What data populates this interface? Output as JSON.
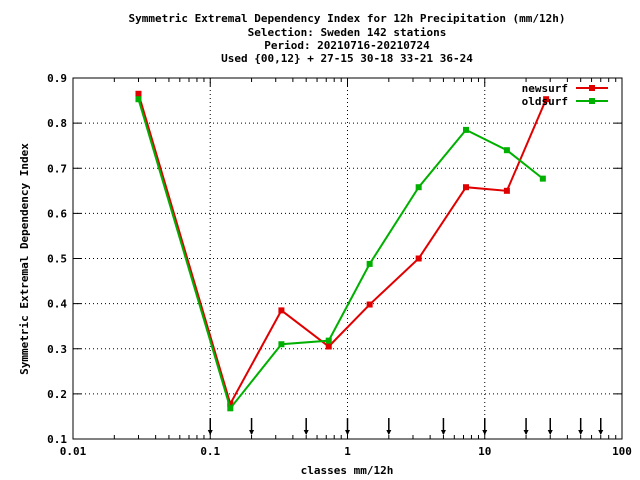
{
  "chart_data": {
    "type": "line",
    "title_lines": [
      "Symmetric Extremal Dependency Index  for 12h Precipitation (mm/12h)",
      "Selection: Sweden    142 stations",
      "Period: 20210716-20210724",
      "Used {00,12} + 27-15 30-18 33-21 36-24"
    ],
    "xlabel": "classes mm/12h",
    "ylabel": "Symmetric Extremal Dependency Index",
    "x_scale": "log",
    "xlim": [
      0.01,
      100
    ],
    "ylim": [
      0.1,
      0.9
    ],
    "x_tick_labels": [
      "0.01",
      "0.1",
      "1",
      "10",
      "100"
    ],
    "y_tick_labels": [
      "0.1",
      "0.2",
      "0.3",
      "0.4",
      "0.5",
      "0.6",
      "0.7",
      "0.8",
      "0.9"
    ],
    "grid": true,
    "legend_position": "top-right",
    "class_markers": [
      0.1,
      0.2,
      0.5,
      1,
      2,
      5,
      10,
      20,
      30,
      50,
      70
    ],
    "series": [
      {
        "name": "newsurf",
        "color": "#e00000",
        "x": [
          0.03,
          0.14,
          0.33,
          0.73,
          1.45,
          3.3,
          7.3,
          14.5,
          28
        ],
        "y": [
          0.865,
          0.178,
          0.385,
          0.305,
          0.398,
          0.5,
          0.658,
          0.65,
          0.853
        ]
      },
      {
        "name": "oldsurf",
        "color": "#00b000",
        "x": [
          0.03,
          0.14,
          0.33,
          0.73,
          1.45,
          3.3,
          7.3,
          14.5,
          26.5
        ],
        "y": [
          0.853,
          0.168,
          0.31,
          0.318,
          0.488,
          0.658,
          0.785,
          0.74,
          0.677
        ]
      }
    ]
  }
}
